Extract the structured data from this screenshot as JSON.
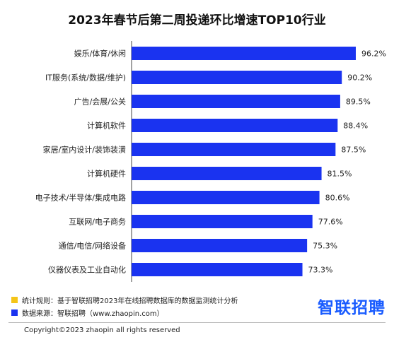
{
  "chart_data": {
    "type": "bar",
    "orientation": "horizontal",
    "title": "2023年春节后第二周投递环比增速TOP10行业",
    "categories": [
      "娱乐/体育/休闲",
      "IT服务(系统/数据/维护)",
      "广告/会展/公关",
      "计算机软件",
      "家居/室内设计/装饰装潢",
      "计算机硬件",
      "电子技术/半导体/集成电路",
      "互联网/电子商务",
      "通信/电信/网络设备",
      "仪器仪表及工业自动化"
    ],
    "values": [
      96.2,
      90.2,
      89.5,
      88.4,
      87.5,
      81.5,
      80.6,
      77.6,
      75.3,
      73.3
    ],
    "value_labels": [
      "96.2%",
      "90.2%",
      "89.5%",
      "88.4%",
      "87.5%",
      "81.5%",
      "80.6%",
      "77.6%",
      "75.3%",
      "73.3%"
    ],
    "xlim": [
      0,
      100
    ],
    "bar_color": "#1a33f0",
    "grid": false
  },
  "legend": {
    "rule_color": "#f5c518",
    "rule_text": "统计规则：基于智联招聘2023年在线招聘数据库的数据监测统计分析",
    "source_color": "#1a33f0",
    "source_text": "数据来源：智联招聘（www.zhaopin.com）"
  },
  "logo_text": "智联招聘",
  "copyright": "Copyright©2023 zhaopin all rights reserved"
}
